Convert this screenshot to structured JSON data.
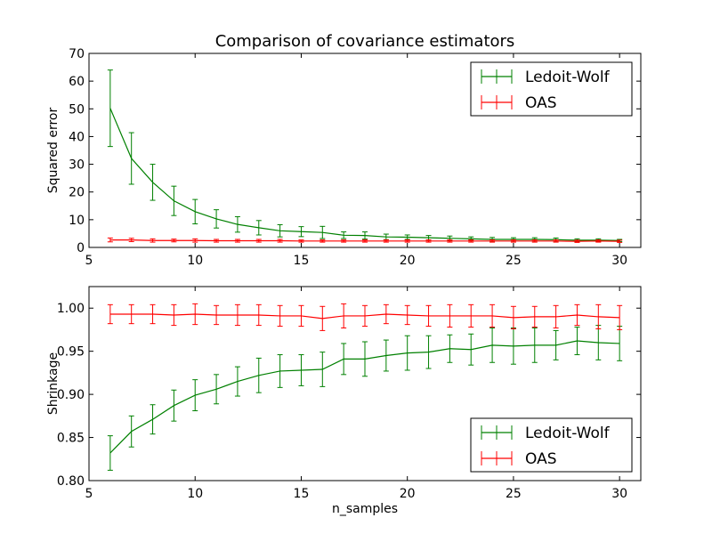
{
  "figure": {
    "background": "#ffffff"
  },
  "colors": {
    "ledoit_wolf": "#008000",
    "oas": "#ff0000",
    "axis": "#000000"
  },
  "chart_data": [
    {
      "type": "line",
      "title": "Comparison of covariance estimators",
      "xlabel": "",
      "ylabel": "Squared error",
      "xlim": [
        5,
        31
      ],
      "ylim": [
        0,
        70
      ],
      "xticks": [
        5,
        10,
        15,
        20,
        25,
        30
      ],
      "yticks": [
        0,
        10,
        20,
        30,
        40,
        50,
        60,
        70
      ],
      "ytick_labels": [
        "0",
        "10",
        "20",
        "30",
        "40",
        "50",
        "60",
        "70"
      ],
      "grid": false,
      "legend": "top-right",
      "x": [
        6,
        7,
        8,
        9,
        10,
        11,
        12,
        13,
        14,
        15,
        16,
        17,
        18,
        19,
        20,
        21,
        22,
        23,
        24,
        25,
        26,
        27,
        28,
        29,
        30
      ],
      "series": [
        {
          "name": "Ledoit-Wolf",
          "color": "#008000",
          "values": [
            50.2,
            32.1,
            23.5,
            16.8,
            12.9,
            10.3,
            8.3,
            7.1,
            6.0,
            5.7,
            5.4,
            4.4,
            4.3,
            3.8,
            3.7,
            3.5,
            3.3,
            3.1,
            2.9,
            2.9,
            2.9,
            2.8,
            2.6,
            2.6,
            2.5
          ],
          "errors": [
            13.8,
            9.3,
            6.5,
            5.3,
            4.4,
            3.3,
            2.8,
            2.6,
            2.2,
            1.8,
            2.2,
            1.2,
            1.3,
            1.0,
            0.8,
            0.8,
            0.8,
            0.7,
            0.7,
            0.6,
            0.6,
            0.6,
            0.5,
            0.5,
            0.4
          ]
        },
        {
          "name": "OAS",
          "color": "#ff0000",
          "values": [
            2.7,
            2.7,
            2.5,
            2.5,
            2.5,
            2.4,
            2.4,
            2.4,
            2.4,
            2.3,
            2.3,
            2.3,
            2.3,
            2.3,
            2.3,
            2.3,
            2.3,
            2.3,
            2.3,
            2.3,
            2.3,
            2.3,
            2.2,
            2.3,
            2.2
          ],
          "errors": [
            0.7,
            0.6,
            0.6,
            0.5,
            0.6,
            0.5,
            0.5,
            0.5,
            0.5,
            0.4,
            0.4,
            0.4,
            0.4,
            0.4,
            0.4,
            0.4,
            0.4,
            0.4,
            0.4,
            0.4,
            0.4,
            0.4,
            0.4,
            0.4,
            0.4
          ]
        }
      ]
    },
    {
      "type": "line",
      "title": "",
      "xlabel": "n_samples",
      "ylabel": "Shrinkage",
      "xlim": [
        5,
        31
      ],
      "ylim": [
        0.8,
        1.025
      ],
      "xticks": [
        5,
        10,
        15,
        20,
        25,
        30
      ],
      "yticks": [
        0.8,
        0.85,
        0.9,
        0.95,
        1.0
      ],
      "ytick_labels": [
        "0.80",
        "0.85",
        "0.90",
        "0.95",
        "1.00"
      ],
      "grid": false,
      "legend": "bottom-right",
      "x": [
        6,
        7,
        8,
        9,
        10,
        11,
        12,
        13,
        14,
        15,
        16,
        17,
        18,
        19,
        20,
        21,
        22,
        23,
        24,
        25,
        26,
        27,
        28,
        29,
        30
      ],
      "series": [
        {
          "name": "Ledoit-Wolf",
          "color": "#008000",
          "values": [
            0.832,
            0.857,
            0.871,
            0.887,
            0.899,
            0.906,
            0.915,
            0.922,
            0.927,
            0.928,
            0.929,
            0.941,
            0.941,
            0.945,
            0.948,
            0.949,
            0.953,
            0.952,
            0.957,
            0.956,
            0.957,
            0.957,
            0.962,
            0.96,
            0.959
          ],
          "errors": [
            0.02,
            0.018,
            0.017,
            0.018,
            0.018,
            0.017,
            0.017,
            0.02,
            0.019,
            0.018,
            0.02,
            0.018,
            0.02,
            0.018,
            0.02,
            0.019,
            0.016,
            0.018,
            0.02,
            0.021,
            0.02,
            0.017,
            0.016,
            0.02,
            0.02
          ]
        },
        {
          "name": "OAS",
          "color": "#ff0000",
          "values": [
            0.993,
            0.993,
            0.993,
            0.992,
            0.993,
            0.992,
            0.992,
            0.992,
            0.991,
            0.991,
            0.988,
            0.991,
            0.991,
            0.993,
            0.992,
            0.991,
            0.991,
            0.991,
            0.991,
            0.989,
            0.99,
            0.99,
            0.992,
            0.99,
            0.989
          ],
          "errors": [
            0.011,
            0.011,
            0.011,
            0.012,
            0.012,
            0.011,
            0.012,
            0.012,
            0.012,
            0.012,
            0.014,
            0.014,
            0.012,
            0.011,
            0.011,
            0.012,
            0.013,
            0.013,
            0.013,
            0.013,
            0.012,
            0.013,
            0.012,
            0.014,
            0.014
          ]
        }
      ]
    }
  ]
}
